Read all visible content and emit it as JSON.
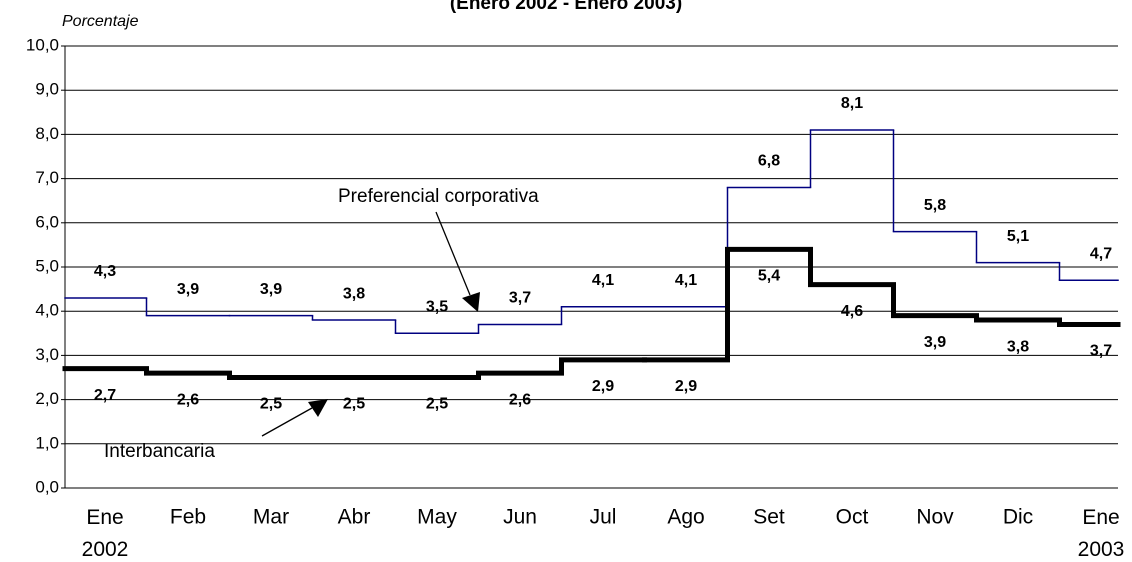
{
  "chart_data": {
    "type": "step-line",
    "title": "(Enero 2002 - Enero 2003)",
    "y_label": "Porcentaje",
    "categories": [
      "Ene 2002",
      "Feb",
      "Mar",
      "Abr",
      "May",
      "Jun",
      "Jul",
      "Ago",
      "Set",
      "Oct",
      "Nov",
      "Dic",
      "Ene 2003"
    ],
    "series": [
      {
        "name": "Preferencial corporativa",
        "color": "#000080",
        "values": [
          4.3,
          3.9,
          3.9,
          3.8,
          3.5,
          3.7,
          4.1,
          4.1,
          6.8,
          8.1,
          5.8,
          5.1,
          4.7
        ],
        "value_labels": [
          "4,3",
          "3,9",
          "3,9",
          "3,8",
          "3,5",
          "3,7",
          "4,1",
          "4,1",
          "6,8",
          "8,1",
          "5,8",
          "5,1",
          "4,7"
        ]
      },
      {
        "name": "Interbancaria",
        "color": "#000000",
        "values": [
          2.7,
          2.6,
          2.5,
          2.5,
          2.5,
          2.6,
          2.9,
          2.9,
          5.4,
          4.6,
          3.9,
          3.8,
          3.7
        ],
        "value_labels": [
          "2,7",
          "2,6",
          "2,5",
          "2,5",
          "2,5",
          "2,6",
          "2,9",
          "2,9",
          "5,4",
          "4,6",
          "3,9",
          "3,8",
          "3,7"
        ]
      }
    ],
    "ylim": [
      0,
      10
    ],
    "yticks": [
      {
        "value": 0,
        "label": "0,0"
      },
      {
        "value": 1,
        "label": "1,0"
      },
      {
        "value": 2,
        "label": "2,0"
      },
      {
        "value": 3,
        "label": "3,0"
      },
      {
        "value": 4,
        "label": "4,0"
      },
      {
        "value": 5,
        "label": "5,0"
      },
      {
        "value": 6,
        "label": "6,0"
      },
      {
        "value": 7,
        "label": "7,0"
      },
      {
        "value": 8,
        "label": "8,0"
      },
      {
        "value": 9,
        "label": "9,0"
      },
      {
        "value": 10,
        "label": "10,0"
      }
    ],
    "grid": true
  }
}
